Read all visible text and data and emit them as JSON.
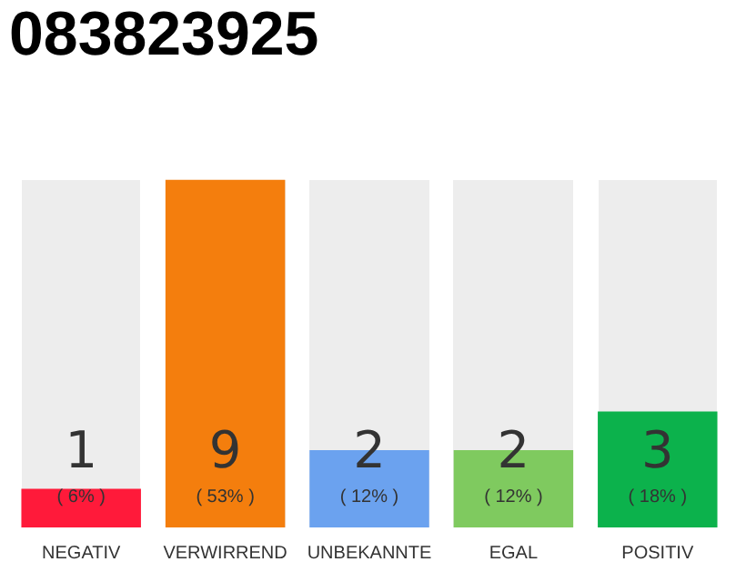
{
  "chart_data": {
    "type": "bar",
    "title": "083823925",
    "categories": [
      "NEGATIV",
      "VERWIRREND",
      "UNBEKANNTE",
      "EGAL",
      "POSITIV"
    ],
    "values": [
      1,
      9,
      2,
      2,
      3
    ],
    "colors": [
      "#ff1a3a",
      "#f47e0d",
      "#6ba2ef",
      "#7fca5f",
      "#0cb24c"
    ],
    "ylim": [
      0,
      9
    ],
    "tick_labels": "x",
    "grid": false,
    "legend": false,
    "data_labels": true,
    "annotations": [
      "( 6% )",
      "( 53% )",
      "( 12% )",
      "( 12% )",
      "( 18% )"
    ]
  }
}
